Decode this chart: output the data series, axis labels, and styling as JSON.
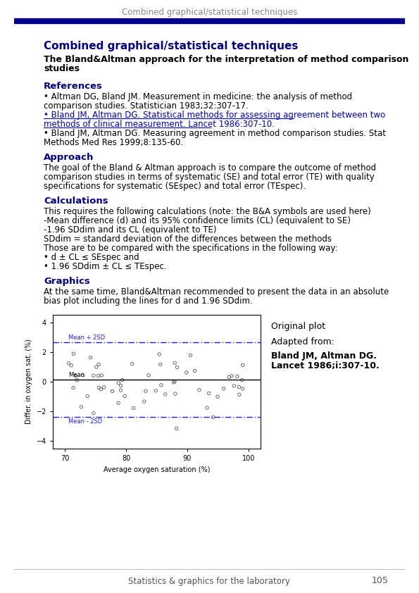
{
  "header_text": "Combined graphical/statistical techniques",
  "header_color": "#888888",
  "rule_color": "#00008B",
  "title": "Combined graphical/statistical techniques",
  "subtitle": "The Bland&Altman approach for the interpretation of method comparison\nstudies",
  "sections": [
    {
      "heading": "References",
      "body": [
        {
          "text": "• Altman DG, Bland JM. Measurement in medicine: the analysis of method\ncomparison studies. Statistician 1983;32:307-17.",
          "underline": false,
          "blue": false
        },
        {
          "text": "• Bland JM, Altman DG. Statistical methods for assessing agreement between two\nmethods of clinical measurement. Lancet 1986:307-10.",
          "underline": true,
          "blue": true
        },
        {
          "text": "• Bland JM, Altman DG. Measuring agreement in method comparison studies. Stat\nMethods Med Res 1999;8:135-60.",
          "underline": false,
          "blue": false
        }
      ]
    },
    {
      "heading": "Approach",
      "body": [
        {
          "text": "The goal of the Bland & Altman approach is to compare the outcome of method\ncomparison studies in terms of systematic (SE) and total error (TE) with quality\nspecifications for systematic (SEspec) and total error (TEspec).",
          "underline": false,
          "blue": false
        }
      ]
    },
    {
      "heading": "Calculations",
      "body": [
        {
          "text": "This requires the following calculations (note: the B&A symbols are used here)\n-Mean difference (d) and its 95% confidence limits (CL) (equivalent to SE)\n-1.96 SDdim and its CL (equivalent to TE)\nSDdim = standard deviation of the differences between the methods\nThose are to be compared with the specifications in the following way:\n• d ± CL ≤ SEspec and\n• 1.96 SDdim ± CL ≤ TEspec.",
          "underline": false,
          "blue": false
        }
      ]
    },
    {
      "heading": "Graphics",
      "body": [
        {
          "text": "At the same time, Bland&Altman recommended to present the data in an absolute\nbias plot including the lines for d and 1.96 SDdim.",
          "underline": false,
          "blue": false
        }
      ]
    }
  ],
  "footer_text": "Statistics & graphics for the laboratory",
  "footer_page": "105",
  "bg_color": "#ffffff",
  "text_color": "#000000",
  "heading_color": "#00008B",
  "title_color": "#00008B"
}
